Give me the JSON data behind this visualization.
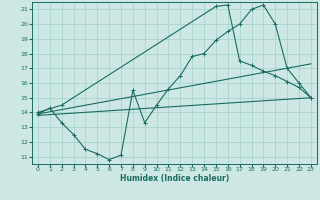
{
  "bg_color": "#cde8e4",
  "grid_color": "#a8d4cf",
  "line_color": "#1a6b60",
  "xlabel": "Humidex (Indice chaleur)",
  "xlim": [
    -0.5,
    23.5
  ],
  "ylim": [
    10.5,
    21.5
  ],
  "yticks": [
    11,
    12,
    13,
    14,
    15,
    16,
    17,
    18,
    19,
    20,
    21
  ],
  "xticks": [
    0,
    1,
    2,
    3,
    4,
    5,
    6,
    7,
    8,
    9,
    10,
    11,
    12,
    13,
    14,
    15,
    16,
    17,
    18,
    19,
    20,
    21,
    22,
    23
  ],
  "line1_x": [
    0,
    1,
    2,
    3,
    4,
    5,
    6,
    7,
    8,
    9,
    10,
    11,
    12,
    13,
    14,
    15,
    16,
    17,
    18,
    19,
    20,
    21,
    22,
    23
  ],
  "line1_y": [
    13.9,
    14.3,
    13.3,
    12.5,
    11.5,
    11.2,
    10.8,
    11.1,
    15.5,
    13.3,
    14.5,
    15.6,
    16.5,
    17.8,
    18.0,
    18.9,
    19.5,
    20.0,
    21.0,
    21.3,
    20.0,
    17.0,
    16.0,
    15.0
  ],
  "line2_x": [
    0,
    2,
    15,
    16,
    17,
    18,
    19,
    20,
    21,
    22,
    23
  ],
  "line2_y": [
    14.0,
    14.5,
    21.2,
    21.3,
    17.5,
    17.2,
    16.8,
    16.5,
    16.1,
    15.7,
    15.0
  ],
  "line3_x": [
    0,
    23
  ],
  "line3_y": [
    13.9,
    17.3
  ],
  "line4_x": [
    0,
    23
  ],
  "line4_y": [
    13.8,
    15.0
  ],
  "marker_size": 3,
  "lw": 0.8
}
